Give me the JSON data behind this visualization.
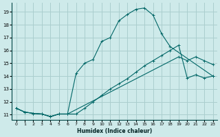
{
  "background_color": "#ceeaea",
  "grid_color": "#aacece",
  "line_color": "#006666",
  "xlabel": "Humidex (Indice chaleur)",
  "xlim": [
    -0.5,
    23.5
  ],
  "ylim": [
    10.6,
    19.7
  ],
  "xticks": [
    0,
    1,
    2,
    3,
    4,
    5,
    6,
    7,
    8,
    9,
    10,
    11,
    12,
    13,
    14,
    15,
    16,
    17,
    18,
    19,
    20,
    21,
    22,
    23
  ],
  "yticks": [
    11,
    12,
    13,
    14,
    15,
    16,
    17,
    18,
    19
  ],
  "line1_x": [
    0,
    1,
    2,
    3,
    4,
    5,
    6,
    7,
    8,
    9,
    10,
    11,
    12,
    13,
    14,
    15,
    16,
    17,
    18,
    19,
    20,
    21,
    22,
    23
  ],
  "line1_y": [
    11.5,
    11.2,
    11.1,
    11.05,
    10.85,
    11.05,
    11.05,
    11.05,
    11.5,
    12.0,
    12.5,
    13.0,
    13.4,
    13.8,
    14.3,
    14.8,
    15.2,
    15.6,
    16.0,
    16.4,
    13.85,
    14.1,
    13.85,
    14.0
  ],
  "line2_x": [
    0,
    1,
    2,
    3,
    4,
    5,
    6,
    7,
    8,
    9,
    10,
    11,
    12,
    13,
    14,
    15,
    16,
    17,
    18,
    23
  ],
  "line2_y": [
    11.5,
    11.2,
    11.1,
    11.05,
    10.85,
    11.05,
    11.05,
    14.2,
    15.0,
    15.3,
    16.7,
    17.0,
    18.3,
    18.8,
    19.2,
    19.3,
    18.75,
    17.3,
    16.3,
    14.0
  ],
  "line3_x": [
    0,
    1,
    2,
    3,
    4,
    5,
    6,
    19,
    20,
    21,
    22,
    23
  ],
  "line3_y": [
    11.5,
    11.2,
    11.1,
    11.05,
    10.85,
    11.05,
    11.05,
    15.5,
    15.2,
    15.5,
    15.2,
    14.9
  ]
}
